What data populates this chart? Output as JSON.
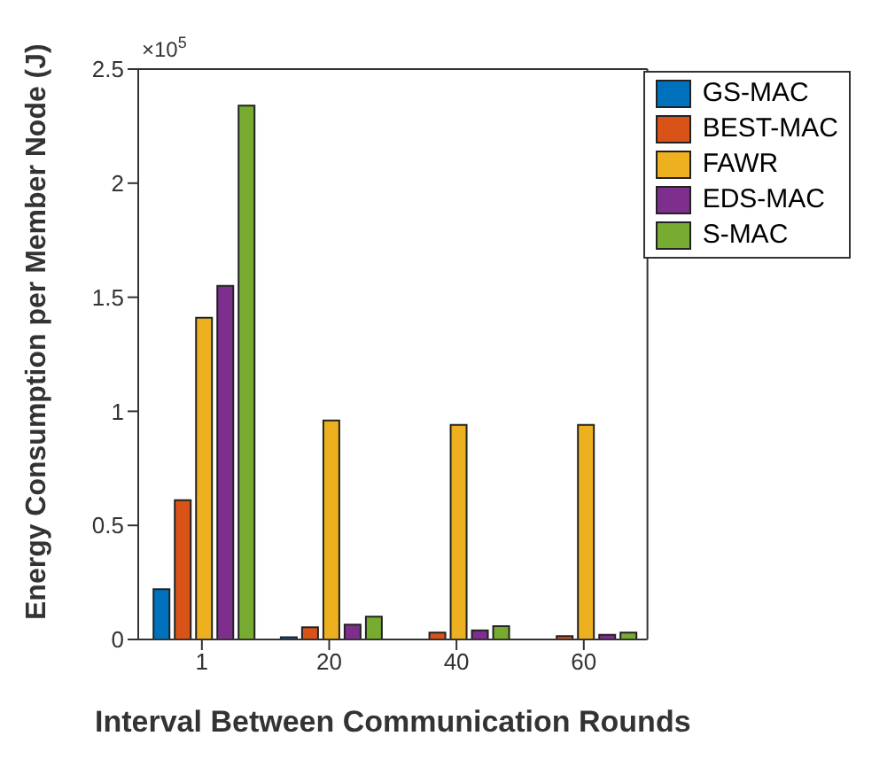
{
  "chart_data": {
    "type": "bar",
    "xlabel": "Interval Between Communication Rounds",
    "ylabel": "Energy Consumption per Member Node (J)",
    "annotations": [
      "×10$^{5}$"
    ],
    "categories": [
      "1",
      "20",
      "40",
      "60"
    ],
    "series": [
      {
        "name": "GS-MAC",
        "color": "#0072bd",
        "values": [
          0.22,
          0.01,
          0,
          0
        ]
      },
      {
        "name": "BEST-MAC",
        "color": "#d95319",
        "values": [
          0.61,
          0.053,
          0.03,
          0.015
        ]
      },
      {
        "name": "FAWR",
        "color": "#edb120",
        "values": [
          1.41,
          0.96,
          0.94,
          0.94
        ]
      },
      {
        "name": "EDS-MAC",
        "color": "#7e2f8e",
        "values": [
          1.55,
          0.065,
          0.04,
          0.02
        ]
      },
      {
        "name": "S-MAC",
        "color": "#77ac30",
        "values": [
          2.34,
          0.1,
          0.058,
          0.03
        ]
      }
    ],
    "ylim": [
      0,
      2.5
    ],
    "yticks": [
      0,
      0.5,
      1,
      1.5,
      2,
      2.5
    ],
    "grid": false,
    "legend": "top right"
  }
}
